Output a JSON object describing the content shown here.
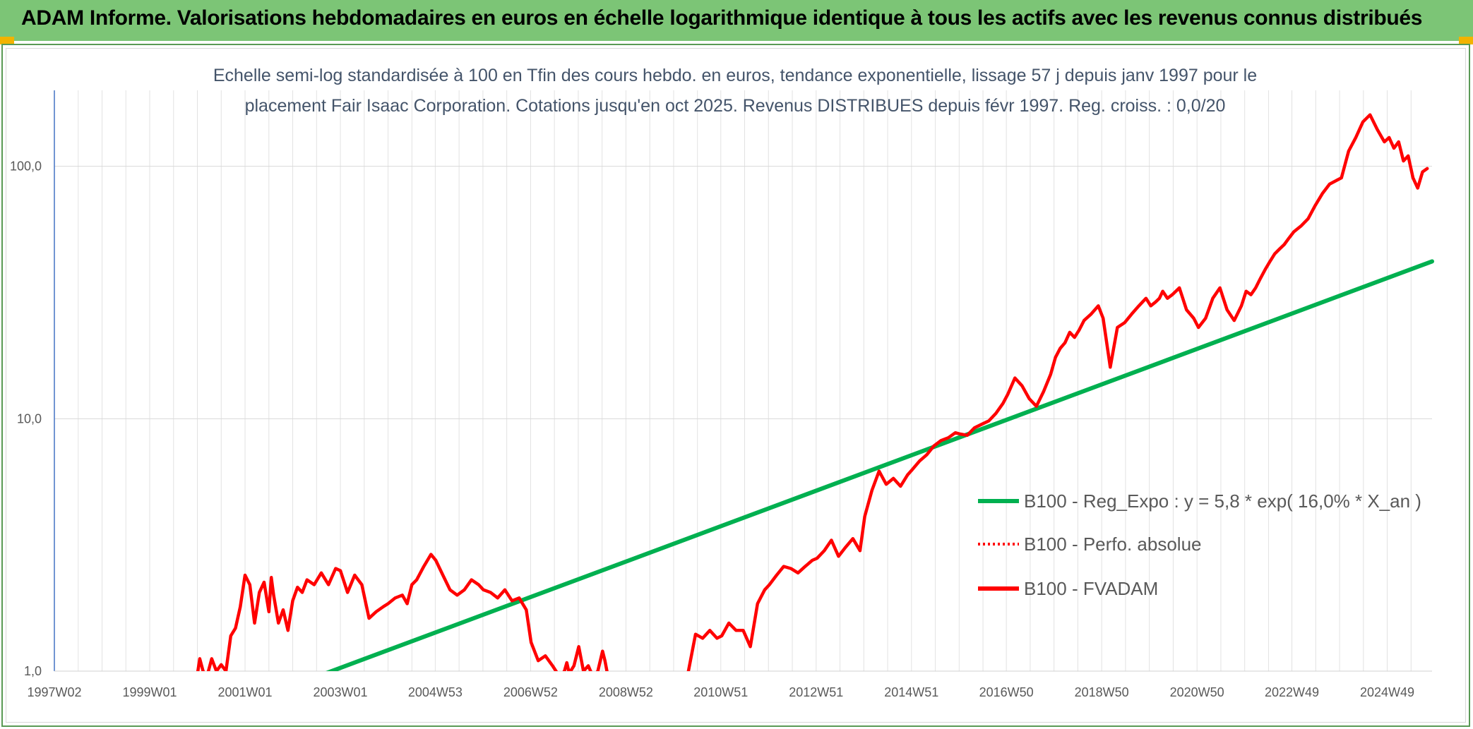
{
  "header": {
    "title": "ADAM Informe. Valorisations hebdomadaires en euros en échelle logarithmique identique à tous les actifs avec les revenus connus distribués"
  },
  "colors": {
    "title_bg": "#7cc576",
    "corner": "#f2b300",
    "trend": "#00b050",
    "price": "#ff0000",
    "grid": "#e2e2e2",
    "axis": "#4472c4"
  },
  "chart_data": {
    "type": "line",
    "scale": "log",
    "title_lines": [
      "Echelle semi-log standardisée à 100 en Tfin des cours hebdo. en euros, tendance exponentielle, lissage 57 j depuis janv 1997 pour le",
      "placement Fair Isaac Corporation. Cotations jusqu'en oct 2025. Revenus DISTRIBUES depuis févr 1997. Reg. croiss. : 0,0/20"
    ],
    "xlabel": "",
    "ylabel": "",
    "x_range": [
      1997.0,
      2025.9
    ],
    "ylim": [
      1.0,
      200.0
    ],
    "y_ticks": [
      {
        "value": 1,
        "label": "1,0"
      },
      {
        "value": 10,
        "label": "10,0"
      },
      {
        "value": 100,
        "label": "100,0"
      }
    ],
    "x_ticks": [
      {
        "x": 1997.0,
        "label": "1997W02"
      },
      {
        "x": 1999.0,
        "label": "1999W01"
      },
      {
        "x": 2001.0,
        "label": "2001W01"
      },
      {
        "x": 2003.0,
        "label": "2003W01"
      },
      {
        "x": 2004.99,
        "label": "2004W53"
      },
      {
        "x": 2006.99,
        "label": "2006W52"
      },
      {
        "x": 2008.99,
        "label": "2008W52"
      },
      {
        "x": 2010.98,
        "label": "2010W51"
      },
      {
        "x": 2012.98,
        "label": "2012W51"
      },
      {
        "x": 2014.98,
        "label": "2014W51"
      },
      {
        "x": 2016.97,
        "label": "2016W50"
      },
      {
        "x": 2018.97,
        "label": "2018W50"
      },
      {
        "x": 2020.97,
        "label": "2020W50"
      },
      {
        "x": 2022.96,
        "label": "2022W49"
      },
      {
        "x": 2024.96,
        "label": "2024W49"
      }
    ],
    "legend": [
      {
        "label": "B100 - Reg_Expo : y = 5,8 * exp( 16,0% *  X_an )",
        "style": "solid-green"
      },
      {
        "label": "B100 - Perfo. absolue",
        "style": "dotted-red"
      },
      {
        "label": "B100 - FVADAM",
        "style": "solid-red"
      }
    ],
    "series": [
      {
        "name": "B100 - Reg_Expo : y = 5,8 * exp( 16,0% *  X_an )",
        "color": "#00b050",
        "x": [
          2002.3,
          2025.9
        ],
        "y": [
          0.92,
          42.0
        ]
      },
      {
        "name": "B100 - FVADAM",
        "color": "#ff0000",
        "segments": [
          {
            "x": [
              2000.0,
              2000.05,
              2000.12,
              2000.2,
              2000.3,
              2000.4,
              2000.5,
              2000.6,
              2000.7,
              2000.8,
              2000.9,
              2001.0,
              2001.1,
              2001.2,
              2001.3,
              2001.4,
              2001.5,
              2001.55,
              2001.6,
              2001.7,
              2001.8,
              2001.9,
              2002.0,
              2002.1,
              2002.2,
              2002.3,
              2002.45,
              2002.6,
              2002.75,
              2002.9,
              2003.0,
              2003.15,
              2003.3,
              2003.45,
              2003.6,
              2003.75,
              2003.9,
              2004.0,
              2004.15,
              2004.3,
              2004.4,
              2004.5,
              2004.6,
              2004.75,
              2004.9,
              2005.0,
              2005.15,
              2005.3,
              2005.45,
              2005.6,
              2005.75,
              2005.9,
              2006.0,
              2006.15,
              2006.3,
              2006.45,
              2006.6,
              2006.75,
              2006.9,
              2007.0,
              2007.15,
              2007.3,
              2007.45,
              2007.6,
              2007.7,
              2007.75,
              2007.8,
              2007.9,
              2008.0,
              2008.1,
              2008.2,
              2008.3,
              2008.4,
              2008.5,
              2008.55,
              2008.6,
              2008.7
            ],
            "y": [
              0.97,
              1.12,
              1.0,
              0.95,
              1.12,
              1.0,
              1.06,
              1.0,
              1.38,
              1.48,
              1.8,
              2.4,
              2.2,
              1.55,
              2.05,
              2.25,
              1.72,
              2.35,
              2.0,
              1.55,
              1.75,
              1.45,
              1.9,
              2.15,
              2.05,
              2.3,
              2.2,
              2.45,
              2.2,
              2.55,
              2.5,
              2.05,
              2.4,
              2.2,
              1.62,
              1.72,
              1.8,
              1.85,
              1.95,
              2.0,
              1.85,
              2.2,
              2.3,
              2.6,
              2.9,
              2.75,
              2.4,
              2.1,
              2.0,
              2.1,
              2.3,
              2.2,
              2.1,
              2.05,
              1.95,
              2.1,
              1.9,
              1.95,
              1.75,
              1.3,
              1.1,
              1.15,
              1.05,
              0.95,
              1.0,
              1.08,
              0.98,
              1.05,
              1.25,
              1.0,
              1.05,
              0.95,
              1.0,
              1.2,
              1.1,
              0.98,
              0.95
            ]
          },
          {
            "x": [
              2010.3,
              2010.45,
              2010.6,
              2010.75,
              2010.9,
              2011.0,
              2011.15,
              2011.3,
              2011.45,
              2011.6,
              2011.75,
              2011.9,
              2012.0,
              2012.15,
              2012.3,
              2012.45,
              2012.6,
              2012.75,
              2012.9,
              2013.0,
              2013.15,
              2013.3,
              2013.45,
              2013.6,
              2013.75,
              2013.9,
              2014.0,
              2014.15,
              2014.3,
              2014.45,
              2014.6,
              2014.75,
              2014.9,
              2015.0,
              2015.15,
              2015.3,
              2015.45,
              2015.6,
              2015.75,
              2015.9,
              2016.0,
              2016.15,
              2016.3,
              2016.45,
              2016.6,
              2016.75,
              2016.9,
              2017.0,
              2017.15,
              2017.3,
              2017.45,
              2017.6,
              2017.75,
              2017.9,
              2018.0,
              2018.1,
              2018.2,
              2018.3,
              2018.4,
              2018.5,
              2018.6,
              2018.75,
              2018.9,
              2019.0,
              2019.15,
              2019.3,
              2019.45,
              2019.6,
              2019.75,
              2019.9,
              2020.0,
              2020.1,
              2020.18,
              2020.25,
              2020.35,
              2020.45,
              2020.6,
              2020.75,
              2020.9,
              2021.0,
              2021.15,
              2021.3,
              2021.45,
              2021.6,
              2021.75,
              2021.9,
              2022.0,
              2022.1,
              2022.2,
              2022.3,
              2022.4,
              2022.5,
              2022.6,
              2022.7,
              2022.8,
              2022.9,
              2023.0,
              2023.15,
              2023.3,
              2023.45,
              2023.6,
              2023.75,
              2023.9,
              2024.0,
              2024.15,
              2024.3,
              2024.45,
              2024.6,
              2024.75,
              2024.9,
              2025.0,
              2025.1,
              2025.2,
              2025.3,
              2025.4,
              2025.5,
              2025.6,
              2025.7,
              2025.8
            ],
            "y": [
              1.0,
              1.4,
              1.35,
              1.45,
              1.35,
              1.38,
              1.55,
              1.45,
              1.45,
              1.25,
              1.85,
              2.1,
              2.2,
              2.4,
              2.6,
              2.55,
              2.45,
              2.6,
              2.75,
              2.8,
              3.0,
              3.3,
              2.85,
              3.1,
              3.35,
              3.0,
              4.1,
              5.2,
              6.2,
              5.5,
              5.8,
              5.4,
              6.0,
              6.3,
              6.8,
              7.2,
              7.8,
              8.2,
              8.4,
              8.8,
              8.7,
              8.6,
              9.2,
              9.5,
              9.8,
              10.5,
              11.5,
              12.5,
              14.5,
              13.5,
              12.0,
              11.2,
              12.8,
              15.0,
              17.5,
              19.0,
              20.0,
              22.0,
              21.0,
              22.5,
              24.5,
              26.0,
              28.0,
              25.0,
              16.0,
              23.0,
              24.0,
              26.0,
              28.0,
              30.0,
              28.0,
              29.0,
              30.0,
              32.0,
              30.0,
              31.0,
              33.0,
              27.0,
              25.0,
              23.0,
              25.0,
              30.0,
              33.0,
              27.0,
              24.5,
              28.0,
              32.0,
              31.0,
              33.0,
              36.0,
              39.0,
              42.0,
              45.0,
              47.0,
              49.0,
              52.0,
              55.0,
              58.0,
              62.0,
              70.0,
              78.0,
              85.0,
              88.0,
              90.0,
              115.0,
              130.0,
              150.0,
              160.0,
              140.0,
              125.0,
              130.0,
              118.0,
              125.0,
              105.0,
              110.0,
              90.0,
              82.0,
              95.0,
              98.0
            ]
          }
        ]
      }
    ]
  }
}
